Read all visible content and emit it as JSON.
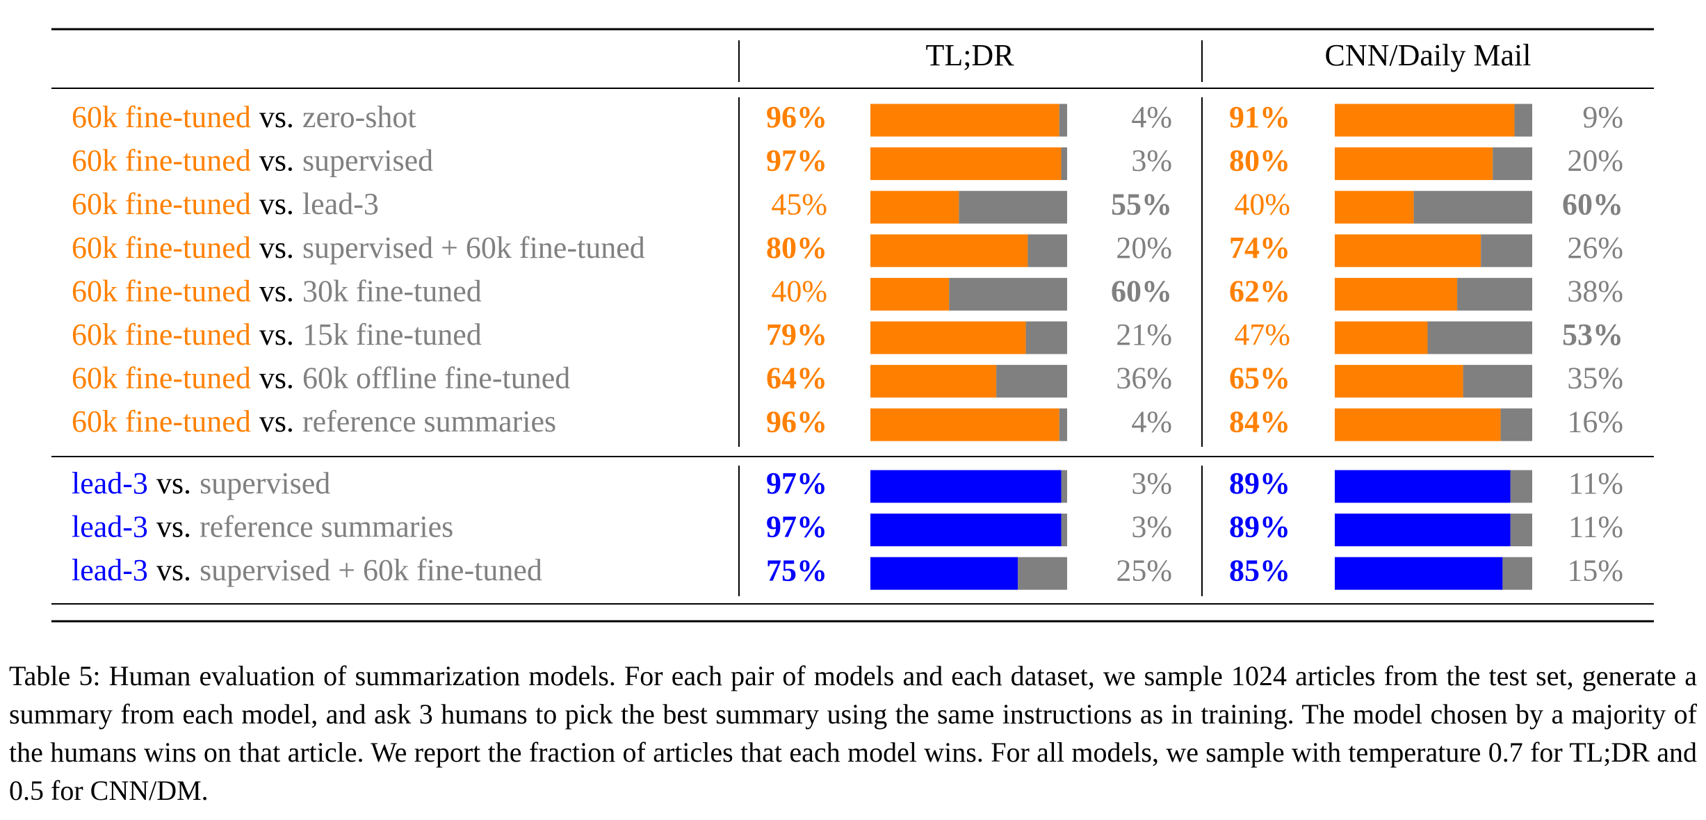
{
  "table": {
    "headers": [
      "TL;DR",
      "CNN/Daily Mail"
    ],
    "vs": "vs.",
    "loss_color": "#808080",
    "groups": [
      {
        "color": "#ff8000",
        "rows": [
          {
            "model": "60k fine-tuned",
            "opponent": "zero-shot",
            "results": [
              {
                "win": 96,
                "win_label": "96%",
                "loss": 4,
                "loss_label": "4%"
              },
              {
                "win": 91,
                "win_label": "91%",
                "loss": 9,
                "loss_label": "9%"
              }
            ]
          },
          {
            "model": "60k fine-tuned",
            "opponent": "supervised",
            "results": [
              {
                "win": 97,
                "win_label": "97%",
                "loss": 3,
                "loss_label": "3%"
              },
              {
                "win": 80,
                "win_label": "80%",
                "loss": 20,
                "loss_label": "20%"
              }
            ]
          },
          {
            "model": "60k fine-tuned",
            "opponent": "lead-3",
            "results": [
              {
                "win": 45,
                "win_label": "45%",
                "loss": 55,
                "loss_label": "55%"
              },
              {
                "win": 40,
                "win_label": "40%",
                "loss": 60,
                "loss_label": "60%"
              }
            ]
          },
          {
            "model": "60k fine-tuned",
            "opponent": "supervised + 60k fine-tuned",
            "results": [
              {
                "win": 80,
                "win_label": "80%",
                "loss": 20,
                "loss_label": "20%"
              },
              {
                "win": 74,
                "win_label": "74%",
                "loss": 26,
                "loss_label": "26%"
              }
            ]
          },
          {
            "model": "60k fine-tuned",
            "opponent": "30k fine-tuned",
            "results": [
              {
                "win": 40,
                "win_label": "40%",
                "loss": 60,
                "loss_label": "60%"
              },
              {
                "win": 62,
                "win_label": "62%",
                "loss": 38,
                "loss_label": "38%"
              }
            ]
          },
          {
            "model": "60k fine-tuned",
            "opponent": "15k fine-tuned",
            "results": [
              {
                "win": 79,
                "win_label": "79%",
                "loss": 21,
                "loss_label": "21%"
              },
              {
                "win": 47,
                "win_label": "47%",
                "loss": 53,
                "loss_label": "53%"
              }
            ]
          },
          {
            "model": "60k fine-tuned",
            "opponent": "60k offline fine-tuned",
            "results": [
              {
                "win": 64,
                "win_label": "64%",
                "loss": 36,
                "loss_label": "36%"
              },
              {
                "win": 65,
                "win_label": "65%",
                "loss": 35,
                "loss_label": "35%"
              }
            ]
          },
          {
            "model": "60k fine-tuned",
            "opponent": "reference summaries",
            "results": [
              {
                "win": 96,
                "win_label": "96%",
                "loss": 4,
                "loss_label": "4%"
              },
              {
                "win": 84,
                "win_label": "84%",
                "loss": 16,
                "loss_label": "16%"
              }
            ]
          }
        ]
      },
      {
        "color": "#0000ff",
        "rows": [
          {
            "model": "lead-3",
            "opponent": "supervised",
            "results": [
              {
                "win": 97,
                "win_label": "97%",
                "loss": 3,
                "loss_label": "3%"
              },
              {
                "win": 89,
                "win_label": "89%",
                "loss": 11,
                "loss_label": "11%"
              }
            ]
          },
          {
            "model": "lead-3",
            "opponent": "reference summaries",
            "results": [
              {
                "win": 97,
                "win_label": "97%",
                "loss": 3,
                "loss_label": "3%"
              },
              {
                "win": 89,
                "win_label": "89%",
                "loss": 11,
                "loss_label": "11%"
              }
            ]
          },
          {
            "model": "lead-3",
            "opponent": "supervised + 60k fine-tuned",
            "results": [
              {
                "win": 75,
                "win_label": "75%",
                "loss": 25,
                "loss_label": "25%"
              },
              {
                "win": 85,
                "win_label": "85%",
                "loss": 15,
                "loss_label": "15%"
              }
            ]
          }
        ]
      }
    ]
  },
  "caption": "Table 5: Human evaluation of summarization models. For each pair of models and each dataset, we sample 1024 articles from the test set, generate a summary from each model, and ask 3 humans to pick the best summary using the same instructions as in training. The model chosen by a majority of the humans wins on that article. We report the fraction of articles that each model wins. For all models, we sample with temperature 0.7 for TL;DR and 0.5 for CNN/DM."
}
